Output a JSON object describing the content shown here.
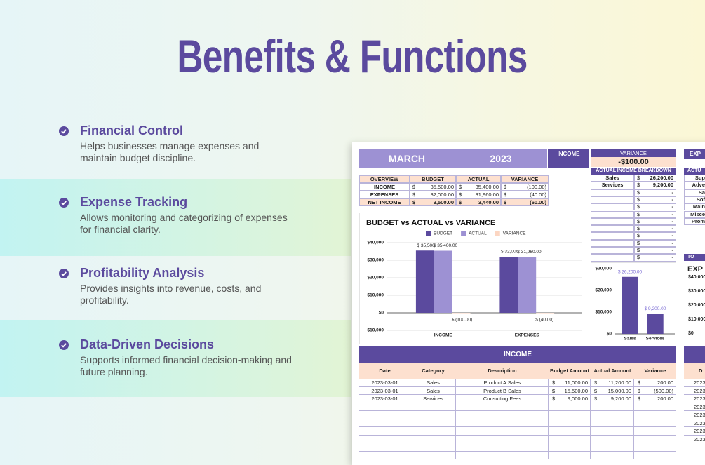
{
  "title": "Benefits & Functions",
  "benefits": [
    {
      "heading": "Financial Control",
      "text": "Helps businesses manage expenses and maintain budget discipline."
    },
    {
      "heading": "Expense Tracking",
      "text": "Allows monitoring and categorizing of expenses for financial clarity."
    },
    {
      "heading": "Profitability Analysis",
      "text": "Provides insights into revenue, costs, and profitability."
    },
    {
      "heading": "Data-Driven Decisions",
      "text": "Supports informed financial decision-making and future planning."
    }
  ],
  "sheet": {
    "month": "MARCH",
    "year": "2023",
    "income_label": "INCOME",
    "variance_label": "VARIANCE",
    "variance_value": "-$100.00",
    "overview": {
      "headers": [
        "OVERVIEW",
        "BUDGET",
        "ACTUAL",
        "VARIANCE"
      ],
      "rows": [
        [
          "INCOME",
          "$",
          "35,500.00",
          "$",
          "35,400.00",
          "$",
          "(100.00)"
        ],
        [
          "EXPENSES",
          "$",
          "32,000.00",
          "$",
          "31,960.00",
          "$",
          "(40.00)"
        ],
        [
          "NET INCOME",
          "$",
          "3,500.00",
          "$",
          "3,440.00",
          "$",
          "(60.00)"
        ]
      ]
    },
    "breakdown": {
      "title": "ACTUAL INCOME BREAKDOWN",
      "rows": [
        [
          "Sales",
          "$",
          "26,200.00"
        ],
        [
          "Services",
          "$",
          "9,200.00"
        ],
        [
          "$",
          "-"
        ],
        [
          "$",
          "-"
        ],
        [
          "$",
          "-"
        ],
        [
          "$",
          "-"
        ],
        [
          "$",
          "-"
        ],
        [
          "$",
          "-"
        ],
        [
          "$",
          "-"
        ],
        [
          "$",
          "-"
        ],
        [
          "$",
          "-"
        ],
        [
          "$",
          "-"
        ]
      ]
    },
    "income_table": {
      "title": "INCOME",
      "headers": [
        "Date",
        "Category",
        "Description",
        "Budget Amount",
        "Actual Amount",
        "Variance"
      ],
      "rows": [
        [
          "2023-03-01",
          "Sales",
          "Product A Sales",
          "$",
          "11,000.00",
          "$",
          "11,200.00",
          "$",
          "200.00"
        ],
        [
          "2023-03-01",
          "Sales",
          "Product B Sales",
          "$",
          "15,500.00",
          "$",
          "15,000.00",
          "$",
          "(500.00)"
        ],
        [
          "2023-03-01",
          "Services",
          "Consulting Fees",
          "$",
          "9,000.00",
          "$",
          "9,200.00",
          "$",
          "200.00"
        ]
      ]
    },
    "side": {
      "header": "EXP",
      "subheader": "ACTU",
      "items": [
        "Sup",
        "Adve",
        "Sa",
        "Sof",
        "Main",
        "Misce",
        "Prom"
      ],
      "total": "TO",
      "chart_title": "EXP",
      "ticks": [
        "$40,000",
        "$30,000",
        "$20,000",
        "$10,000",
        "$0"
      ],
      "table_header": "D",
      "dates": [
        "2023",
        "2023",
        "2023",
        "2023",
        "2023",
        "2023",
        "2023",
        "2023"
      ]
    }
  },
  "chart_data": [
    {
      "type": "bar",
      "title": "BUDGET vs ACTUAL vs VARIANCE",
      "categories": [
        "INCOME",
        "EXPENSES"
      ],
      "series": [
        {
          "name": "BUDGET",
          "color": "#5b4a9e",
          "values": [
            35500,
            32000
          ],
          "value_labels": [
            "$ 35,500",
            "$ 32,000"
          ]
        },
        {
          "name": "ACTUAL",
          "color": "#9d91d3",
          "values": [
            35400,
            31960
          ],
          "value_labels": [
            "$ 35,400.00",
            "$ 31,960.00"
          ]
        },
        {
          "name": "VARIANCE",
          "color": "#fcd6c2",
          "values": [
            -100,
            -40
          ],
          "value_labels": [
            "$ (100.00)",
            "$ (40.00)"
          ]
        }
      ],
      "ylim": [
        -10000,
        40000
      ],
      "yticks": [
        {
          "value": -10000,
          "label": "-$10,000"
        },
        {
          "value": 0,
          "label": "$0"
        },
        {
          "value": 10000,
          "label": "$10,000"
        },
        {
          "value": 20000,
          "label": "$20,000"
        },
        {
          "value": 30000,
          "label": "$30,000"
        },
        {
          "value": 40000,
          "label": "$40,000"
        }
      ],
      "grid": true,
      "legend": "top"
    },
    {
      "type": "bar",
      "categories": [
        "Sales",
        "Services"
      ],
      "series": [
        {
          "color": "#5b4a9e",
          "values": [
            26200,
            9200
          ],
          "value_labels": [
            "$ 26,200.00",
            "$ 9,200.00"
          ]
        }
      ],
      "label_color": "#7a6bd4",
      "ylim": [
        0,
        30000
      ],
      "yticks": [
        {
          "value": 0,
          "label": "$0"
        },
        {
          "value": 10000,
          "label": "$10,000"
        },
        {
          "value": 20000,
          "label": "$20,000"
        },
        {
          "value": 30000,
          "label": "$30,000"
        }
      ],
      "grid": false
    }
  ]
}
